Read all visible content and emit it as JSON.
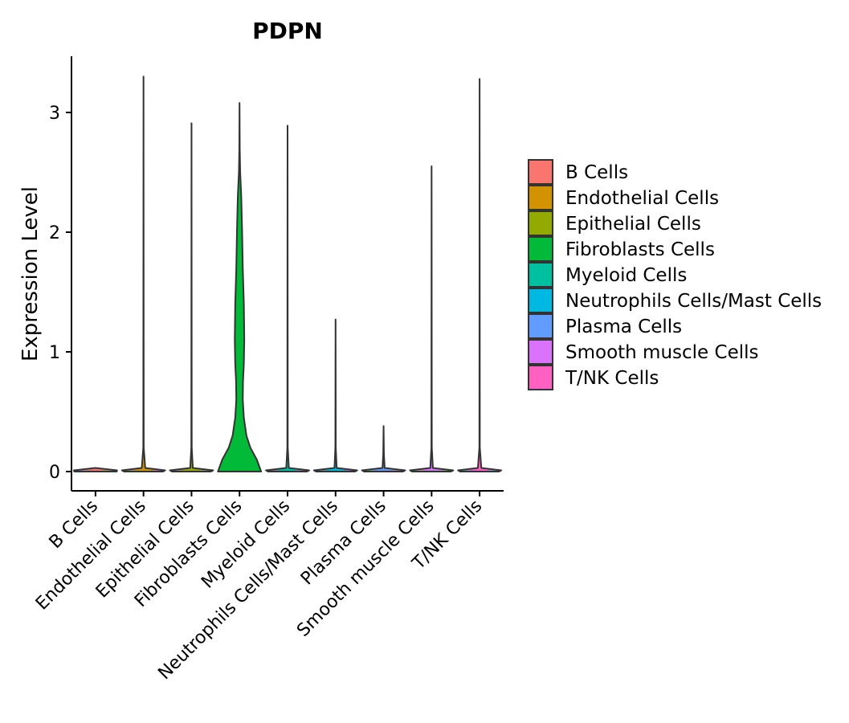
{
  "chart_data": {
    "type": "violin",
    "title": "PDPN",
    "xlabel": "",
    "ylabel": "Expression Level",
    "ylim": [
      -0.16,
      3.48
    ],
    "yticks": [
      0,
      1,
      2,
      3
    ],
    "categories": [
      "B Cells",
      "Endothelial Cells",
      "Epithelial Cells",
      "Fibroblasts Cells",
      "Myeloid Cells",
      "Neutrophils Cells/Mast Cells",
      "Plasma Cells",
      "Smooth muscle Cells",
      "T/NK Cells"
    ],
    "colors": [
      "#F8766D",
      "#D39200",
      "#93AA00",
      "#00BA38",
      "#00C19F",
      "#00B9E3",
      "#619CFF",
      "#DB72FB",
      "#FF61C3"
    ],
    "max_values": [
      0.0,
      3.3,
      2.91,
      3.08,
      2.89,
      1.27,
      0.38,
      2.55,
      3.28
    ],
    "violins": [
      {
        "profile": [
          [
            0,
            0.98
          ],
          [
            0.01,
            1.0
          ],
          [
            0.03,
            0
          ]
        ]
      },
      {
        "profile": [
          [
            0,
            0.9
          ],
          [
            0.01,
            1.0
          ],
          [
            0.03,
            0.08
          ],
          [
            0.2,
            0.01
          ],
          [
            3.3,
            0.0
          ]
        ]
      },
      {
        "profile": [
          [
            0,
            0.9
          ],
          [
            0.01,
            1.0
          ],
          [
            0.03,
            0.06
          ],
          [
            0.2,
            0.01
          ],
          [
            2.91,
            0.0
          ]
        ]
      },
      {
        "profile": [
          [
            0,
            1.0
          ],
          [
            0.1,
            0.8
          ],
          [
            0.2,
            0.5
          ],
          [
            0.3,
            0.32
          ],
          [
            0.45,
            0.2
          ],
          [
            0.6,
            0.15
          ],
          [
            0.75,
            0.16
          ],
          [
            0.9,
            0.2
          ],
          [
            1.1,
            0.22
          ],
          [
            1.4,
            0.2
          ],
          [
            1.7,
            0.15
          ],
          [
            2.0,
            0.12
          ],
          [
            2.3,
            0.08
          ],
          [
            2.5,
            0.03
          ],
          [
            2.7,
            0.01
          ],
          [
            3.08,
            0.0
          ]
        ]
      },
      {
        "profile": [
          [
            0,
            0.9
          ],
          [
            0.01,
            1.0
          ],
          [
            0.03,
            0.06
          ],
          [
            0.2,
            0.01
          ],
          [
            2.89,
            0.0
          ]
        ]
      },
      {
        "profile": [
          [
            0,
            0.9
          ],
          [
            0.01,
            1.0
          ],
          [
            0.03,
            0.05
          ],
          [
            0.2,
            0.01
          ],
          [
            1.27,
            0.0
          ]
        ]
      },
      {
        "profile": [
          [
            0,
            0.9
          ],
          [
            0.01,
            1.0
          ],
          [
            0.03,
            0.05
          ],
          [
            0.15,
            0.015
          ],
          [
            0.38,
            0.0
          ]
        ]
      },
      {
        "profile": [
          [
            0,
            0.9
          ],
          [
            0.01,
            1.0
          ],
          [
            0.03,
            0.06
          ],
          [
            0.2,
            0.01
          ],
          [
            2.55,
            0.0
          ]
        ]
      },
      {
        "profile": [
          [
            0,
            0.9
          ],
          [
            0.01,
            1.0
          ],
          [
            0.03,
            0.08
          ],
          [
            0.2,
            0.01
          ],
          [
            3.28,
            0.0
          ]
        ]
      }
    ],
    "legend": {
      "position": "right",
      "entries": [
        "B Cells",
        "Endothelial Cells",
        "Epithelial Cells",
        "Fibroblasts Cells",
        "Myeloid Cells",
        "Neutrophils Cells/Mast Cells",
        "Plasma Cells",
        "Smooth muscle Cells",
        "T/NK Cells"
      ]
    }
  }
}
